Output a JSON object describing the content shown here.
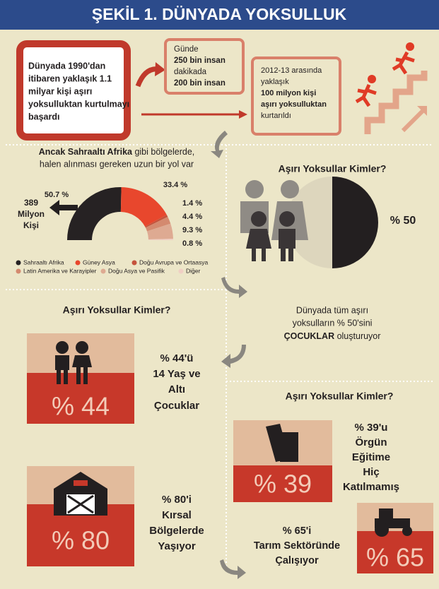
{
  "header": {
    "title": "ŞEKİL 1. DÜNYADA YOKSULLUK"
  },
  "intro": {
    "lines": [
      "Dünyada 1990'dan",
      "itibaren yaklaşık 1.1",
      "milyar kişi aşırı",
      "yoksulluktan kurtulmayı",
      "başardı"
    ]
  },
  "daily": {
    "lines": [
      "Günde",
      "250 bin insan",
      "dakikada",
      "200 bin insan"
    ]
  },
  "rescued": {
    "lines": [
      "2012-13 arasında",
      "yaklaşık",
      "100 milyon kişi",
      "aşırı yoksulluktan",
      "kurtarıldı"
    ]
  },
  "regions": {
    "heading": [
      "Ancak Sahraaltı Afrika",
      " gibi bölgelerde,"
    ],
    "heading_line2": "halen alınması gereken uzun bir yol var",
    "total": [
      "389",
      "Milyon",
      "Kişi"
    ]
  },
  "chart_data": {
    "type": "half-donut",
    "categories": [
      "Sahraaltı Afrika",
      "Güney Asya",
      "Doğu Avrupa ve Ortaasya",
      "Latin Amerika ve Karayipler",
      "Doğu Asya ve Pasifik",
      "Diğer"
    ],
    "values": [
      50.7,
      33.4,
      1.4,
      4.4,
      9.3,
      0.8
    ],
    "value_labels": [
      "50.7 %",
      "33.4 %",
      "1.4 %",
      "4.4 %",
      "9.3 %",
      "0.8 %"
    ],
    "colors": [
      "#262223",
      "#e8472d",
      "#c5533c",
      "#d48a6f",
      "#deaa92",
      "#f0cfc4"
    ]
  },
  "children": {
    "title": "Aşırı Yoksullar Kimler?",
    "share": "% 50",
    "note": [
      "Dünyada tüm aşırı",
      "yoksulların % 50'sini"
    ],
    "note_bold": "ÇOCUKLAR",
    "note_tail": " oluşturuyor"
  },
  "section_left": {
    "title": "Aşırı Yoksullar Kimler?",
    "age": {
      "figure": "% 44",
      "lines": [
        "% 44'ü",
        "14 Yaş ve",
        "Altı",
        "Çocuklar"
      ]
    },
    "rural": {
      "figure": "% 80",
      "lines": [
        "% 80'i",
        "Kırsal",
        "Bölgelerde",
        "Yaşıyor"
      ]
    }
  },
  "section_right": {
    "title": "Aşırı Yoksullar Kimler?",
    "school": {
      "figure": "% 39",
      "lines": [
        "% 39'u",
        "Örgün",
        "Eğitime",
        "Hiç",
        "Katılmamış"
      ]
    },
    "farm": {
      "figure": "% 65",
      "lines": [
        "% 65'i",
        "Tarım Sektöründe",
        "Çalışıyor"
      ]
    }
  }
}
